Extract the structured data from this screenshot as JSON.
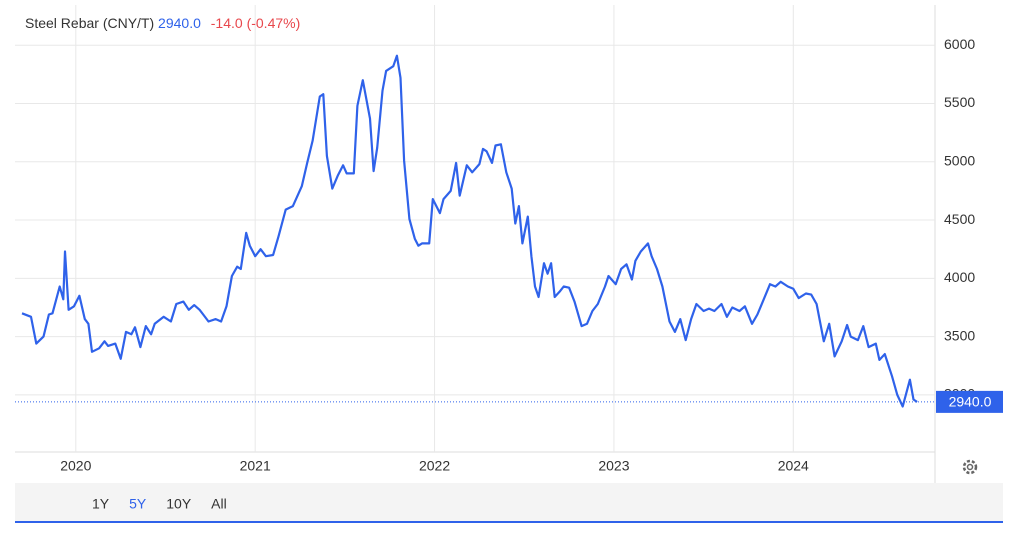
{
  "chart_data": {
    "type": "line",
    "title": "Steel Rebar (CNY/T)",
    "last_price": "2940.0",
    "change": "-14.0 (-0.47%)",
    "x": [
      2019.7,
      2019.75,
      2019.78,
      2019.82,
      2019.85,
      2019.87,
      2019.91,
      2019.93,
      2019.94,
      2019.96,
      2019.99,
      2020.02,
      2020.05,
      2020.07,
      2020.09,
      2020.13,
      2020.16,
      2020.18,
      2020.22,
      2020.25,
      2020.28,
      2020.31,
      2020.33,
      2020.36,
      2020.39,
      2020.42,
      2020.44,
      2020.49,
      2020.53,
      2020.56,
      2020.6,
      2020.63,
      2020.66,
      2020.69,
      2020.71,
      2020.74,
      2020.78,
      2020.81,
      2020.84,
      2020.87,
      2020.9,
      2020.92,
      2020.95,
      2020.97,
      2021.0,
      2021.03,
      2021.06,
      2021.1,
      2021.13,
      2021.17,
      2021.21,
      2021.26,
      2021.29,
      2021.32,
      2021.36,
      2021.38,
      2021.4,
      2021.43,
      2021.46,
      2021.49,
      2021.51,
      2021.55,
      2021.57,
      2021.6,
      2021.64,
      2021.66,
      2021.68,
      2021.71,
      2021.73,
      2021.77,
      2021.79,
      2021.81,
      2021.83,
      2021.86,
      2021.89,
      2021.91,
      2021.93,
      2021.97,
      2021.99,
      2022.03,
      2022.05,
      2022.09,
      2022.12,
      2022.14,
      2022.18,
      2022.21,
      2022.25,
      2022.27,
      2022.29,
      2022.32,
      2022.34,
      2022.37,
      2022.4,
      2022.43,
      2022.45,
      2022.47,
      2022.49,
      2022.52,
      2022.54,
      2022.56,
      2022.58,
      2022.61,
      2022.63,
      2022.65,
      2022.67,
      2022.7,
      2022.72,
      2022.75,
      2022.78,
      2022.82,
      2022.85,
      2022.88,
      2022.91,
      2022.95,
      2022.97,
      2023.01,
      2023.04,
      2023.07,
      2023.1,
      2023.12,
      2023.15,
      2023.19,
      2023.21,
      2023.24,
      2023.27,
      2023.31,
      2023.34,
      2023.37,
      2023.4,
      2023.43,
      2023.46,
      2023.5,
      2023.53,
      2023.56,
      2023.6,
      2023.63,
      2023.66,
      2023.7,
      2023.73,
      2023.77,
      2023.8,
      2023.83,
      2023.87,
      2023.9,
      2023.93,
      2023.97,
      2024.0,
      2024.03,
      2024.07,
      2024.1,
      2024.13,
      2024.17,
      2024.2,
      2024.23,
      2024.27,
      2024.3,
      2024.32,
      2024.36,
      2024.39,
      2024.42,
      2024.46,
      2024.48,
      2024.51,
      2024.55,
      2024.58,
      2024.61,
      2024.65,
      2024.67,
      2024.69
    ],
    "series": [
      {
        "name": "Steel Rebar",
        "color": "#2f62ea",
        "values": [
          3700,
          3670,
          3440,
          3500,
          3690,
          3700,
          3930,
          3820,
          4230,
          3730,
          3760,
          3850,
          3650,
          3610,
          3370,
          3400,
          3460,
          3420,
          3440,
          3310,
          3540,
          3520,
          3580,
          3410,
          3590,
          3520,
          3610,
          3670,
          3630,
          3780,
          3800,
          3730,
          3770,
          3730,
          3690,
          3630,
          3650,
          3630,
          3760,
          4020,
          4100,
          4080,
          4390,
          4280,
          4190,
          4250,
          4190,
          4200,
          4360,
          4590,
          4620,
          4790,
          4990,
          5180,
          5560,
          5580,
          5050,
          4770,
          4880,
          4970,
          4900,
          4900,
          5480,
          5700,
          5370,
          4920,
          5120,
          5610,
          5780,
          5820,
          5910,
          5720,
          5010,
          4510,
          4340,
          4280,
          4300,
          4300,
          4680,
          4560,
          4680,
          4750,
          4990,
          4710,
          4970,
          4910,
          4980,
          5110,
          5090,
          4990,
          5140,
          5150,
          4910,
          4770,
          4470,
          4620,
          4300,
          4530,
          4190,
          3930,
          3840,
          4130,
          4040,
          4130,
          3840,
          3890,
          3930,
          3920,
          3800,
          3590,
          3610,
          3720,
          3780,
          3930,
          4020,
          3950,
          4080,
          4120,
          3990,
          4150,
          4230,
          4300,
          4190,
          4080,
          3930,
          3630,
          3540,
          3650,
          3470,
          3650,
          3780,
          3720,
          3740,
          3720,
          3780,
          3670,
          3750,
          3720,
          3760,
          3610,
          3690,
          3800,
          3950,
          3930,
          3970,
          3930,
          3910,
          3830,
          3870,
          3860,
          3780,
          3460,
          3610,
          3330,
          3460,
          3600,
          3500,
          3470,
          3590,
          3410,
          3440,
          3300,
          3350,
          3160,
          3000,
          2900,
          3130,
          2960,
          2940
        ]
      }
    ],
    "xlim": [
      2019.7,
      2024.79
    ],
    "ylim": [
      2510,
      6345
    ],
    "xticks": [
      2020,
      2021,
      2022,
      2023,
      2024
    ],
    "yticks": [
      3000,
      3500,
      4000,
      4500,
      5000,
      5500,
      6000
    ],
    "grid": true,
    "ranges": [
      "1Y",
      "5Y",
      "10Y",
      "All"
    ],
    "selected_range": "5Y"
  }
}
